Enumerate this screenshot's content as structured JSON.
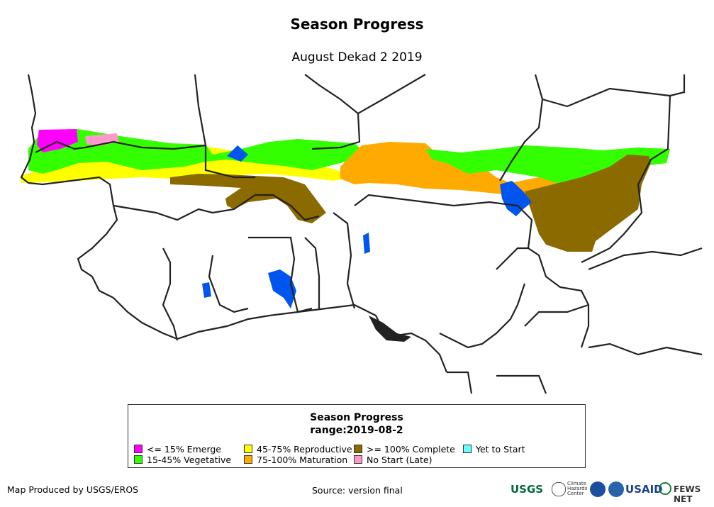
{
  "title": "Season Progress",
  "subtitle": "August Dekad 2 2019",
  "legend": {
    "title": "Season Progress",
    "range": "range:2019-08-2",
    "items": [
      {
        "label": "<= 15% Emerge",
        "color": "#ff00ff"
      },
      {
        "label": "15-45% Vegetative",
        "color": "#33ff00"
      },
      {
        "label": "45-75% Reproductive",
        "color": "#ffff00"
      },
      {
        "label": "75-100% Maturation",
        "color": "#ffaa00"
      },
      {
        "label": ">= 100% Complete",
        "color": "#8b6a00"
      },
      {
        "label": "No Start (Late)",
        "color": "#ff99cc"
      },
      {
        "label": "Yet to Start",
        "color": "#66ffff"
      }
    ]
  },
  "footer": {
    "producer": "Map Produced by USGS/EROS",
    "source": "Source: version final"
  },
  "logos": [
    "USGS",
    "Climate Hazards Center",
    "NOAA",
    "USAID",
    "FEWS NET"
  ],
  "colors": {
    "water": "#0055ee",
    "border": "#222222"
  }
}
